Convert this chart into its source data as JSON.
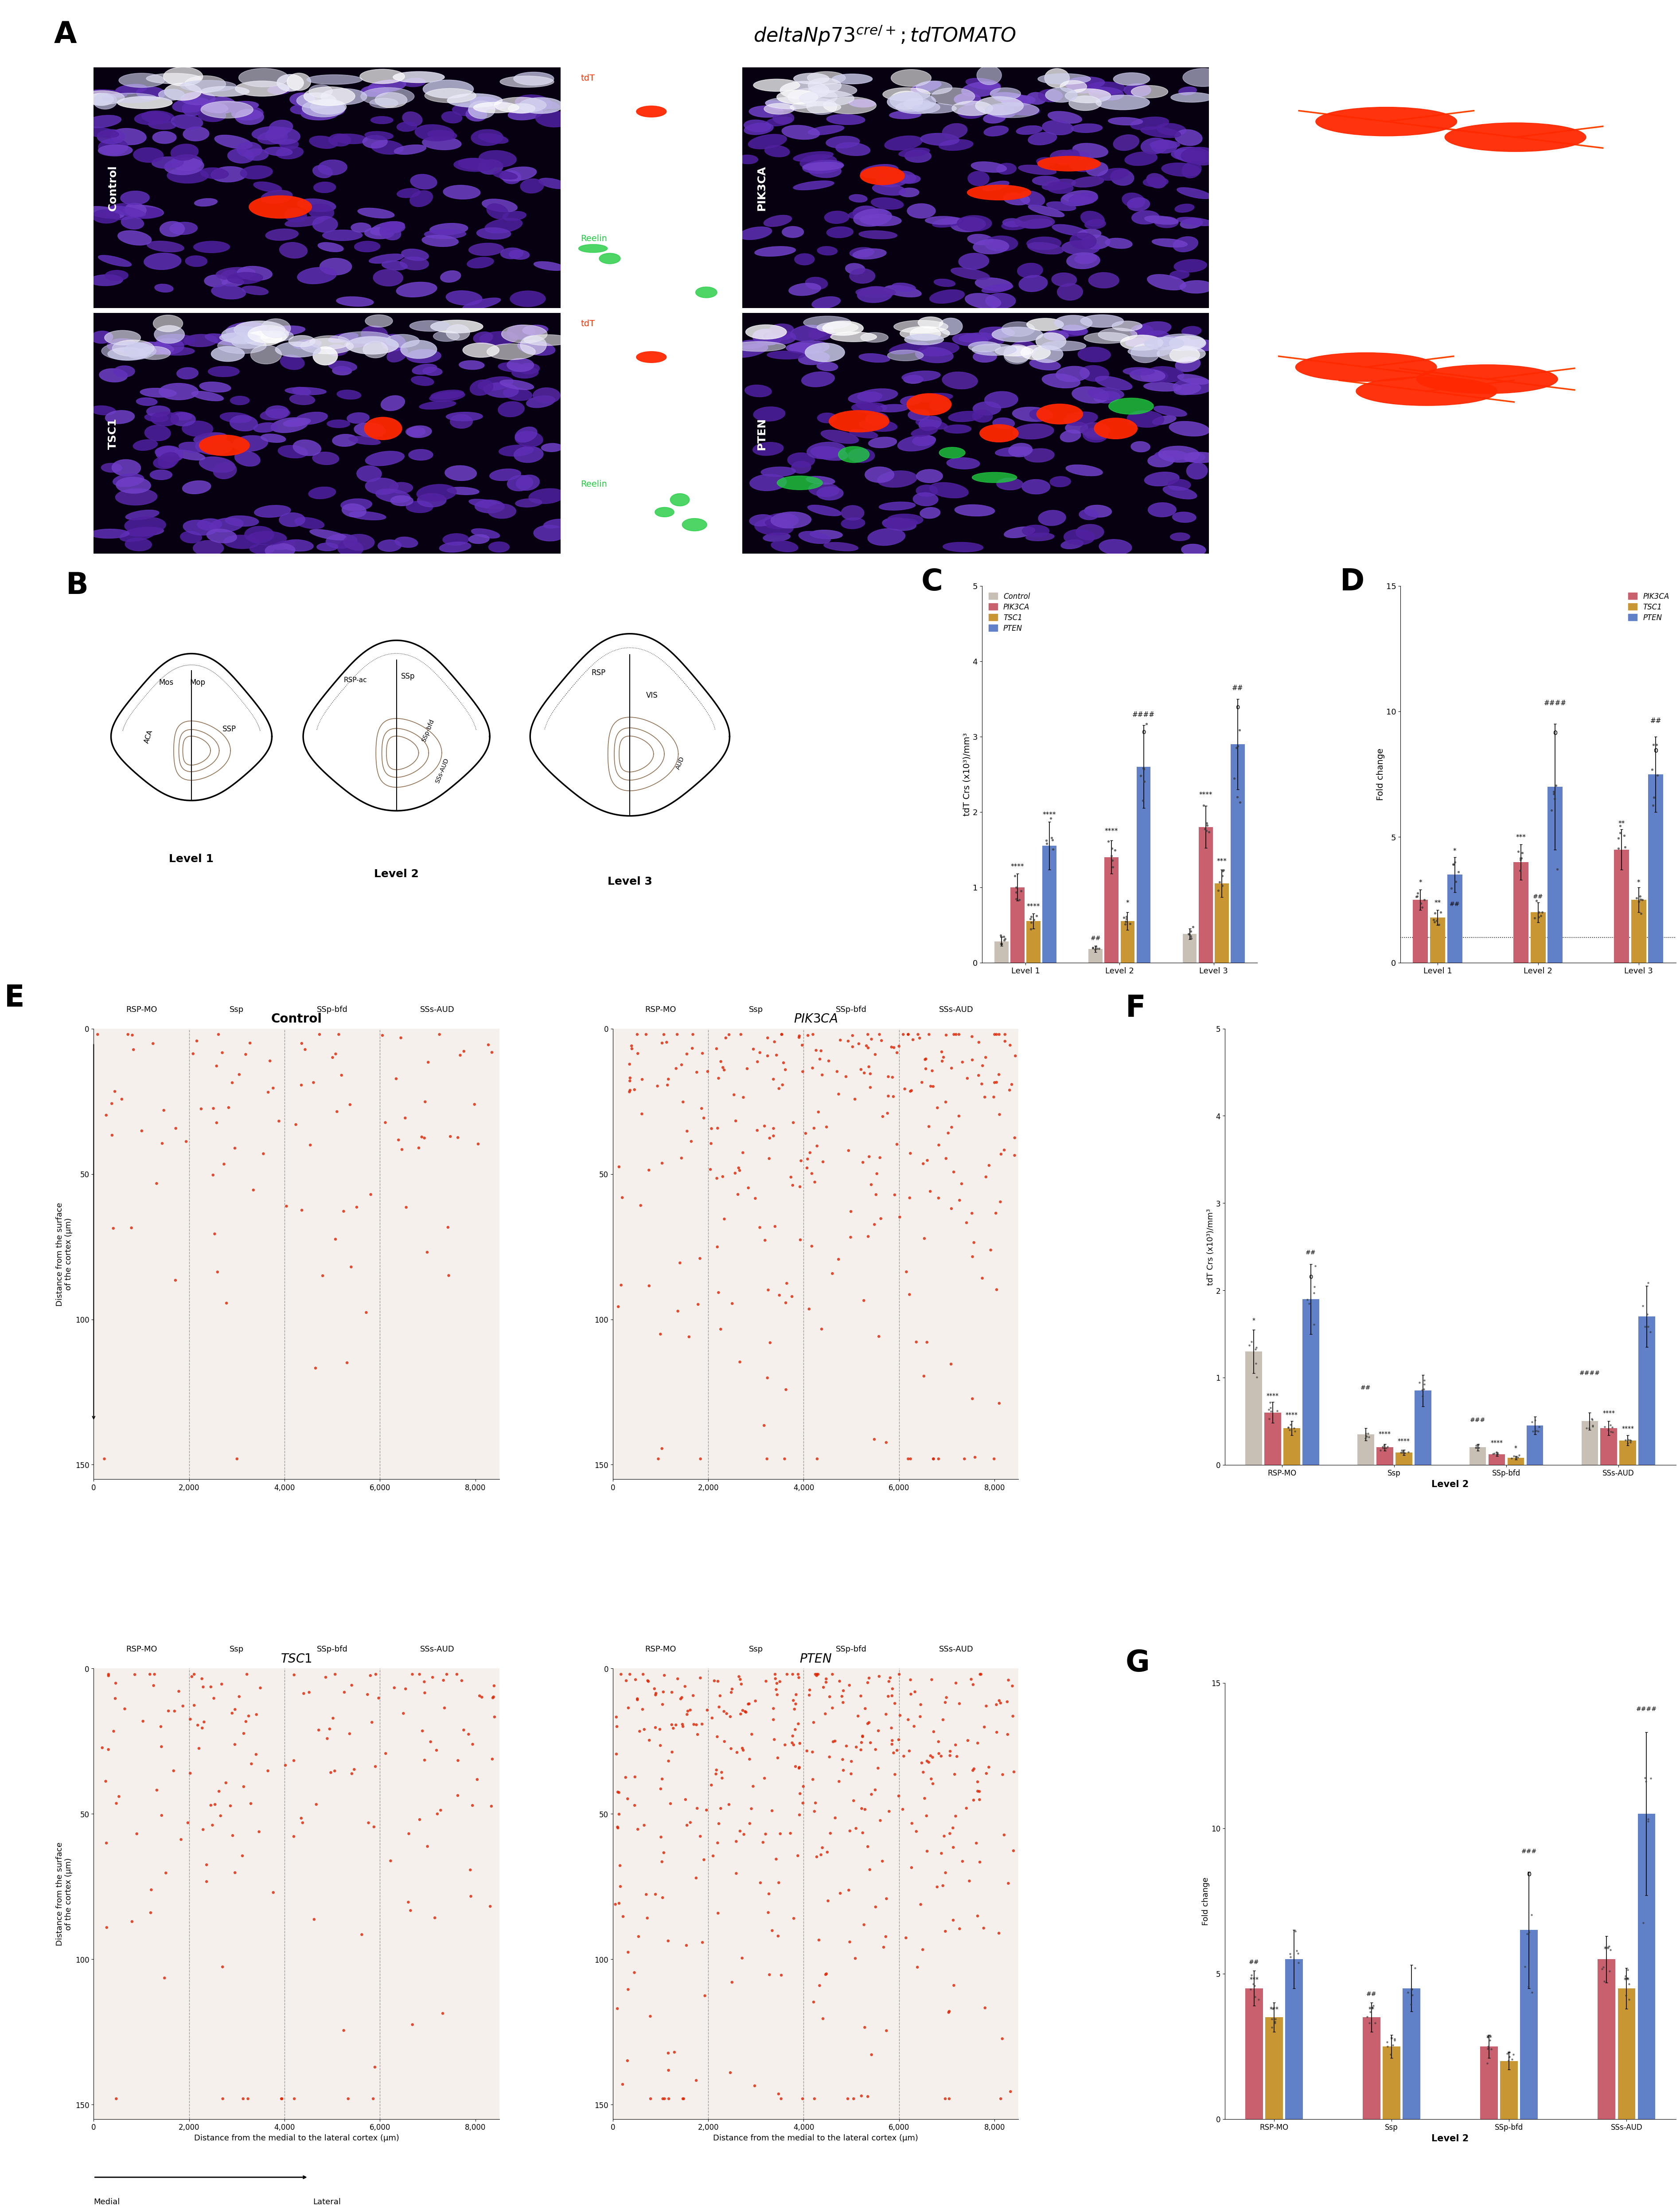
{
  "color_control": "#c8c0b4",
  "color_pik3ca": "#c8606e",
  "color_tsc1": "#c89632",
  "color_pten": "#6080c8",
  "legend_labels_C": [
    "Control",
    "PIK3CA",
    "TSC1",
    "PTEN"
  ],
  "legend_labels_D": [
    "PIK3CA",
    "TSC1",
    "PTEN"
  ],
  "C_ylabel": "tdT Crs (x10³)/mm³",
  "D_ylabel": "Fold change",
  "C_ylim": [
    0,
    5
  ],
  "D_ylim": [
    0,
    15
  ],
  "C_yticks": [
    0,
    1,
    2,
    3,
    4,
    5
  ],
  "D_yticks": [
    0,
    5,
    10,
    15
  ],
  "C_xticks": [
    "Level 1",
    "Level 2",
    "Level 3"
  ],
  "D_xticks": [
    "Level 1",
    "Level 2",
    "Level 3"
  ],
  "C_data": {
    "Control": {
      "Level 1": 0.28,
      "Level 2": 0.18,
      "Level 3": 0.38
    },
    "PIK3CA": {
      "Level 1": 1.0,
      "Level 2": 1.4,
      "Level 3": 1.8
    },
    "TSC1": {
      "Level 1": 0.55,
      "Level 2": 0.55,
      "Level 3": 1.05
    },
    "PTEN": {
      "Level 1": 1.55,
      "Level 2": 2.6,
      "Level 3": 2.9
    }
  },
  "C_err": {
    "Control": {
      "Level 1": 0.06,
      "Level 2": 0.04,
      "Level 3": 0.07
    },
    "PIK3CA": {
      "Level 1": 0.18,
      "Level 2": 0.22,
      "Level 3": 0.28
    },
    "TSC1": {
      "Level 1": 0.1,
      "Level 2": 0.12,
      "Level 3": 0.18
    },
    "PTEN": {
      "Level 1": 0.32,
      "Level 2": 0.55,
      "Level 3": 0.6
    }
  },
  "D_data": {
    "PIK3CA": {
      "Level 1": 2.5,
      "Level 2": 4.0,
      "Level 3": 4.5
    },
    "TSC1": {
      "Level 1": 1.8,
      "Level 2": 2.0,
      "Level 3": 2.5
    },
    "PTEN": {
      "Level 1": 3.5,
      "Level 2": 7.0,
      "Level 3": 7.5
    }
  },
  "D_err": {
    "PIK3CA": {
      "Level 1": 0.4,
      "Level 2": 0.7,
      "Level 3": 0.8
    },
    "TSC1": {
      "Level 1": 0.3,
      "Level 2": 0.4,
      "Level 3": 0.5
    },
    "PTEN": {
      "Level 1": 0.7,
      "Level 2": 2.5,
      "Level 3": 1.5
    }
  },
  "F_ylabel": "tdT Crs (x10³)/mm³",
  "F_ylim": [
    0,
    5
  ],
  "F_yticks": [
    0,
    1,
    2,
    3,
    4,
    5
  ],
  "F_xticks": [
    "RSP-MO",
    "Ssp",
    "SSp-bfd",
    "SSs-AUD"
  ],
  "F_data": {
    "Control": {
      "RSP-MO": 1.3,
      "Ssp": 0.35,
      "SSp-bfd": 0.2,
      "SSs-AUD": 0.5
    },
    "PIK3CA": {
      "RSP-MO": 0.6,
      "Ssp": 0.2,
      "SSp-bfd": 0.12,
      "SSs-AUD": 0.42
    },
    "TSC1": {
      "RSP-MO": 0.42,
      "Ssp": 0.14,
      "SSp-bfd": 0.08,
      "SSs-AUD": 0.28
    },
    "PTEN": {
      "RSP-MO": 1.9,
      "Ssp": 0.85,
      "SSp-bfd": 0.45,
      "SSs-AUD": 1.7
    }
  },
  "F_err": {
    "Control": {
      "RSP-MO": 0.25,
      "Ssp": 0.07,
      "SSp-bfd": 0.04,
      "SSs-AUD": 0.1
    },
    "PIK3CA": {
      "RSP-MO": 0.12,
      "Ssp": 0.04,
      "SSp-bfd": 0.02,
      "SSs-AUD": 0.08
    },
    "TSC1": {
      "RSP-MO": 0.08,
      "Ssp": 0.03,
      "SSp-bfd": 0.02,
      "SSs-AUD": 0.06
    },
    "PTEN": {
      "RSP-MO": 0.4,
      "Ssp": 0.18,
      "SSp-bfd": 0.1,
      "SSs-AUD": 0.35
    }
  },
  "G_ylabel": "Fold change",
  "G_ylim": [
    0,
    15
  ],
  "G_yticks": [
    0,
    5,
    10,
    15
  ],
  "G_xticks": [
    "RSP-MO",
    "Ssp",
    "SSp-bfd",
    "SSs-AUD"
  ],
  "G_data": {
    "PIK3CA": {
      "RSP-MO": 4.5,
      "Ssp": 3.5,
      "SSp-bfd": 2.5,
      "SSs-AUD": 5.5
    },
    "TSC1": {
      "RSP-MO": 3.5,
      "Ssp": 2.5,
      "SSp-bfd": 2.0,
      "SSs-AUD": 4.5
    },
    "PTEN": {
      "RSP-MO": 5.5,
      "Ssp": 4.5,
      "SSp-bfd": 6.5,
      "SSs-AUD": 10.5
    }
  },
  "G_err": {
    "PIK3CA": {
      "RSP-MO": 0.6,
      "Ssp": 0.5,
      "SSp-bfd": 0.4,
      "SSs-AUD": 0.8
    },
    "TSC1": {
      "RSP-MO": 0.5,
      "Ssp": 0.4,
      "SSp-bfd": 0.3,
      "SSs-AUD": 0.7
    },
    "PTEN": {
      "RSP-MO": 1.0,
      "Ssp": 0.8,
      "SSp-bfd": 2.0,
      "SSs-AUD": 2.8
    }
  },
  "E_regions": [
    "RSP-MO",
    "Ssp",
    "SSp-bfd",
    "SSs-AUD"
  ],
  "E_scatter_color": "#dd2200",
  "E_scatter_bg": "#f5f0ec",
  "background_color": "#ffffff"
}
